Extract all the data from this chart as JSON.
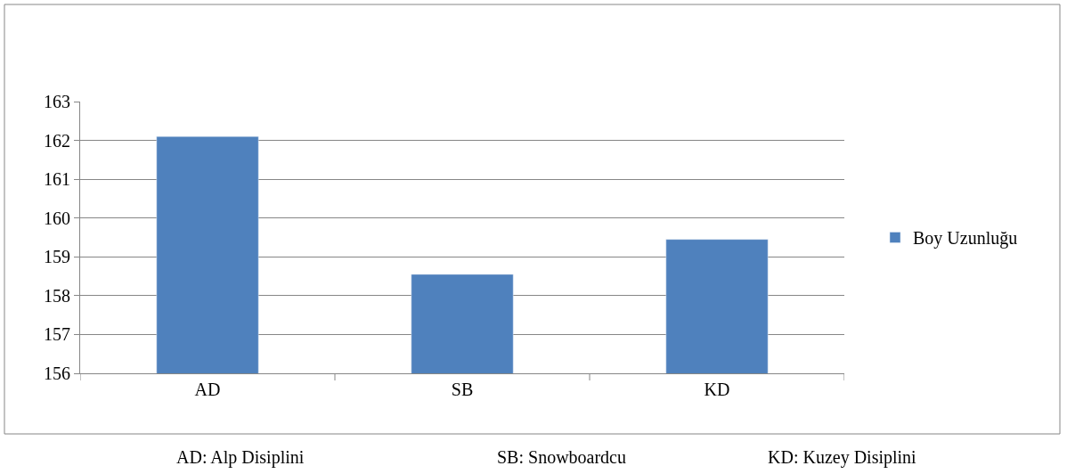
{
  "chart_data": {
    "type": "bar",
    "categories": [
      "AD",
      "SB",
      "KD"
    ],
    "series": [
      {
        "name": "Boy Uzunluğu",
        "color": "#4f81bd",
        "values": [
          162.1,
          158.55,
          159.45
        ]
      }
    ],
    "ylim": [
      156,
      163
    ],
    "yticks": [
      156,
      157,
      158,
      159,
      160,
      161,
      162,
      163
    ],
    "grid": "y",
    "legend": "right",
    "annotations": [
      "AD: Alp Disiplini",
      "SB: Snowboardcu",
      "KD: Kuzey Disiplini"
    ]
  }
}
